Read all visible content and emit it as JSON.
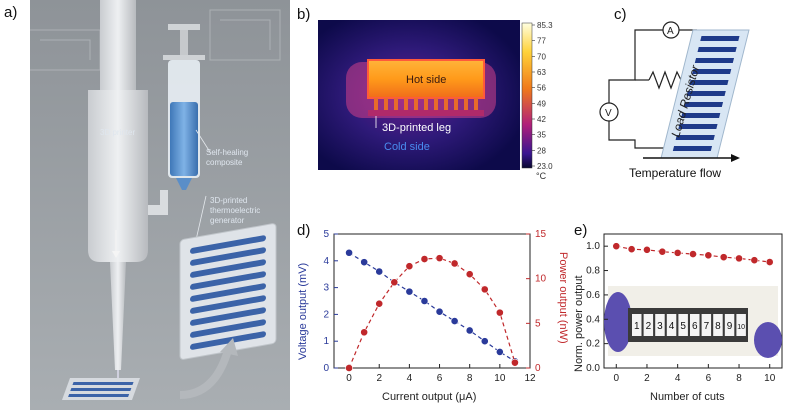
{
  "panel_labels": {
    "a": "a)",
    "b": "b)",
    "c": "c)",
    "d": "d)",
    "e": "e)"
  },
  "panel_a": {
    "printer_label": "3D printer",
    "composite_label": "Self-healing composite",
    "generator_label": "3D-printed thermoelectric generator"
  },
  "panel_b": {
    "hot_label": "Hot side",
    "leg_label": "3D-printed leg",
    "cold_label": "Cold side",
    "scale_ticks": [
      "85.3",
      "77",
      "70",
      "63",
      "56",
      "49",
      "42",
      "35",
      "28",
      "23.0"
    ],
    "unit": "°C"
  },
  "panel_c": {
    "ammeter": "A",
    "voltmeter": "V",
    "resistor_label": "Load Resistor",
    "flow_label": "Temperature flow"
  },
  "chart_data": [
    {
      "type": "line",
      "xlabel": "Current output (μA)",
      "ylabel_left": "Voltage output (mV)",
      "ylabel_right": "Power output (nW)",
      "xlim": [
        -1,
        12
      ],
      "ylim_left": [
        0,
        5
      ],
      "ylim_right": [
        0,
        15
      ],
      "x_ticks": [
        "0",
        "2",
        "4",
        "6",
        "8",
        "10",
        "12"
      ],
      "y_left_ticks": [
        "0",
        "1",
        "2",
        "3",
        "4",
        "5"
      ],
      "y_right_ticks": [
        "0",
        "5",
        "10",
        "15"
      ],
      "series": [
        {
          "axis": "left",
          "color": "#2a3a9a",
          "x": [
            0,
            1,
            2,
            3,
            4,
            5,
            6,
            7,
            8,
            9,
            10,
            11
          ],
          "y": [
            4.3,
            3.95,
            3.6,
            3.2,
            2.85,
            2.5,
            2.1,
            1.75,
            1.4,
            1.0,
            0.6,
            0.25
          ]
        },
        {
          "axis": "right",
          "color": "#c0282b",
          "x": [
            0,
            1,
            2,
            3,
            4,
            5,
            6,
            7,
            8,
            9,
            10,
            11
          ],
          "y": [
            0,
            4.0,
            7.2,
            9.6,
            11.4,
            12.2,
            12.3,
            11.7,
            10.5,
            8.8,
            6.2,
            0.6
          ]
        }
      ]
    },
    {
      "type": "line",
      "xlabel": "Number of cuts",
      "ylabel": "Norm. power output",
      "xlim": [
        -0.8,
        10.8
      ],
      "ylim": [
        0,
        1.1
      ],
      "x_ticks": [
        "0",
        "2",
        "4",
        "6",
        "8",
        "10"
      ],
      "y_ticks": [
        "0.0",
        "0.2",
        "0.4",
        "0.6",
        "0.8",
        "1.0"
      ],
      "series": [
        {
          "color": "#c0282b",
          "x": [
            0,
            1,
            2,
            3,
            4,
            5,
            6,
            7,
            8,
            9,
            10
          ],
          "y": [
            1.0,
            0.975,
            0.97,
            0.955,
            0.945,
            0.935,
            0.925,
            0.91,
            0.9,
            0.885,
            0.87
          ]
        }
      ],
      "inset_numbers": [
        "1",
        "2",
        "3",
        "4",
        "5",
        "6",
        "7",
        "8",
        "9",
        "10"
      ]
    }
  ]
}
